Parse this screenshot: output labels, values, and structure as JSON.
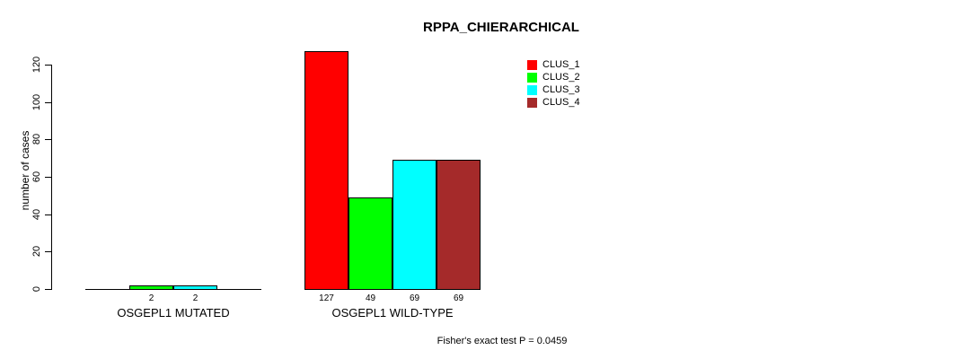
{
  "chart_data": {
    "type": "bar",
    "title": "RPPA_CHIERARCHICAL",
    "ylabel": "number of cases",
    "xlabel": "",
    "footnote": "Fisher's exact test P = 0.0459",
    "grid": false,
    "legend_position": "top-right",
    "ylim": [
      0,
      127
    ],
    "y_ticks": [
      0,
      20,
      40,
      60,
      80,
      100,
      120
    ],
    "categories": [
      "OSGEPL1 MUTATED",
      "OSGEPL1 WILD-TYPE"
    ],
    "series": [
      {
        "name": "CLUS_1",
        "color": "#FF0000",
        "values": [
          0,
          127
        ]
      },
      {
        "name": "CLUS_2",
        "color": "#00FF00",
        "values": [
          2,
          49
        ]
      },
      {
        "name": "CLUS_3",
        "color": "#00FFFF",
        "values": [
          2,
          69
        ]
      },
      {
        "name": "CLUS_4",
        "color": "#A52A2A",
        "values": [
          0,
          69
        ]
      }
    ],
    "bar_value_labels": [
      [
        "",
        "2",
        "2",
        ""
      ],
      [
        "127",
        "49",
        "69",
        "69"
      ]
    ]
  }
}
